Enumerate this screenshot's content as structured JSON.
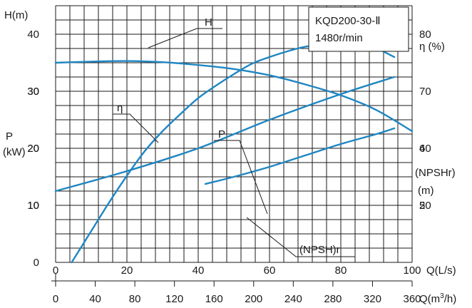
{
  "chart_data": {
    "type": "line",
    "model_label": "KQD200-30-Ⅱ",
    "speed_label": "1480r/min",
    "axes": {
      "x_q_ls": {
        "label": "Q(L/s)",
        "range": [
          0,
          100
        ],
        "ticks": [
          "0",
          "20",
          "40",
          "60",
          "80",
          "100"
        ]
      },
      "x_q_m3h": {
        "label_prefix": "Q(m",
        "label_sup": "3",
        "label_suffix": "/h)",
        "range": [
          0,
          360
        ],
        "ticks": [
          "0",
          "40",
          "80",
          "120",
          "160",
          "200",
          "240",
          "280",
          "320",
          "360"
        ]
      },
      "y_head": {
        "label": "H(m)",
        "range": [
          0,
          45
        ],
        "ticks": [
          "0",
          "10",
          "20",
          "30",
          "40"
        ]
      },
      "y_power": {
        "label_top": "P",
        "label_bottom": "(kW)",
        "range": [
          0,
          45
        ],
        "ticks": [
          "10",
          "20",
          "30"
        ]
      },
      "y_eff": {
        "label": "η (%)",
        "range": [
          40,
          85
        ],
        "ticks": [
          "50",
          "60",
          "70",
          "80"
        ]
      },
      "y_npsh": {
        "label_top": "(NPSHr)",
        "label_bottom": "(m)",
        "range": [
          0,
          9
        ],
        "ticks": [
          "2",
          "4"
        ]
      }
    },
    "grid": true,
    "series": [
      {
        "name": "H",
        "axis": "y_head",
        "x": [
          0,
          10,
          20,
          30,
          40,
          50,
          60,
          70,
          80,
          90,
          100
        ],
        "y": [
          35,
          35.2,
          35.3,
          35.1,
          34.6,
          33.9,
          32.8,
          31.2,
          29.3,
          26.7,
          23
        ]
      },
      {
        "name": "η",
        "axis": "y_eff",
        "x": [
          4.5,
          10,
          15,
          20,
          25,
          30,
          35,
          40,
          45,
          50,
          55,
          60,
          65,
          70,
          75,
          80,
          85,
          90,
          95
        ],
        "y": [
          40,
          45.5,
          50.5,
          55.2,
          59.5,
          63,
          66,
          68.8,
          71,
          73,
          74.8,
          76,
          77,
          77.8,
          78.2,
          78.4,
          78.2,
          77.5,
          76
        ]
      },
      {
        "name": "P",
        "axis": "y_power",
        "x": [
          0,
          20,
          40,
          60,
          80,
          95
        ],
        "y": [
          12.5,
          16,
          20,
          25,
          29.5,
          32.5
        ]
      },
      {
        "name": "(NPSH)r",
        "axis": "y_npsh",
        "x": [
          42,
          50,
          60,
          70,
          80,
          90,
          95
        ],
        "y": [
          2.75,
          3.0,
          3.35,
          3.75,
          4.15,
          4.5,
          4.7
        ]
      }
    ]
  }
}
